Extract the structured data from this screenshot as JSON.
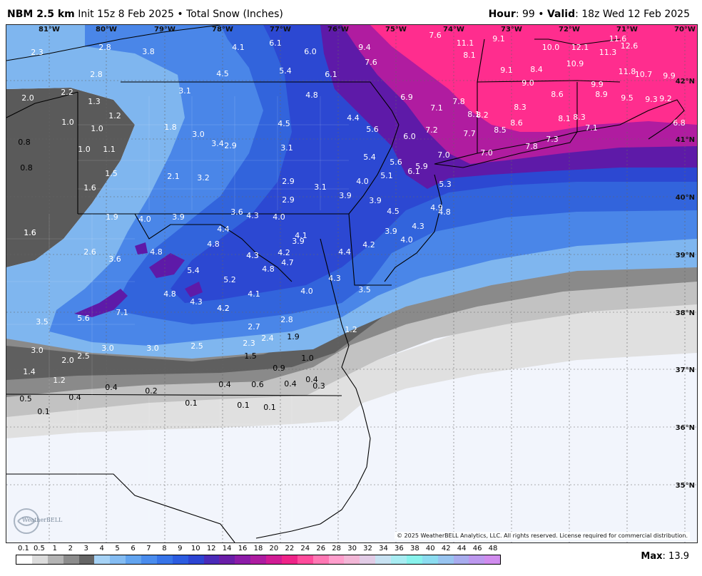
{
  "header": {
    "model": "NBM 2.5 km",
    "init": "Init 15z 8 Feb 2025",
    "bullet": "•",
    "field": "Total Snow (Inches)",
    "hour_label": "Hour",
    "hour_value": ": 99",
    "valid_label": "Valid",
    "valid_value": ": 18z Wed 12 Feb 2025"
  },
  "map": {
    "longitudes": [
      "81°W",
      "80°W",
      "79°W",
      "78°W",
      "77°W",
      "76°W",
      "75°W",
      "74°W",
      "73°W",
      "72°W",
      "71°W",
      "70°W"
    ],
    "latitudes": [
      "42°N",
      "41°N",
      "40°N",
      "39°N",
      "38°N",
      "37°N",
      "36°N",
      "35°N"
    ],
    "snow_values": [
      "2.3",
      "2.8",
      "3.8",
      "4.1",
      "6.1",
      "6.0",
      "9.4",
      "7.6",
      "11.1",
      "9.1",
      "10.0",
      "12.1",
      "11.6",
      "12.6",
      "2.0",
      "2.2",
      "2.8",
      "4.5",
      "5.4",
      "6.1",
      "7.6",
      "8.1",
      "9.1",
      "8.4",
      "10.9",
      "11.3",
      "11.8",
      "10.7",
      "9.9",
      "1.3",
      "1.2",
      "3.1",
      "4.8",
      "6.9",
      "7.1",
      "7.8",
      "8.1",
      "9.0",
      "8.6",
      "9.9",
      "8.9",
      "9.5",
      "9.3",
      "9.2",
      "1.0",
      "1.0",
      "1.8",
      "3.0",
      "4.5",
      "4.4",
      "5.6",
      "8.2",
      "8.3",
      "8.6",
      "8.1",
      "8.3",
      "7.1",
      "6.8",
      "0.8",
      "1.0",
      "1.1",
      "3.4",
      "2.9",
      "3.1",
      "6.0",
      "7.2",
      "7.7",
      "8.5",
      "7.3",
      "7.8",
      "7.0",
      "7.0",
      "0.8",
      "1.6",
      "1.5",
      "2.1",
      "3.2",
      "5.4",
      "5.6",
      "5.9",
      "6.1",
      "5.1",
      "4.0",
      "2.9",
      "3.1",
      "2.9",
      "3.9",
      "5.3",
      "1.6",
      "1.9",
      "4.0",
      "3.9",
      "3.6",
      "4.3",
      "4.0",
      "3.9",
      "4.5",
      "4.9",
      "4.8",
      "4.3",
      "1.6",
      "4.4",
      "4.8",
      "4.3",
      "4.1",
      "3.9",
      "4.4",
      "4.2",
      "3.9",
      "4.0",
      "2.6",
      "3.6",
      "4.8",
      "5.4",
      "4.3",
      "4.2",
      "4.7",
      "4.8",
      "5.2",
      "4.2",
      "4.3",
      "4.1",
      "4.0",
      "3.5",
      "7.1",
      "5.6",
      "4.8",
      "4.3",
      "4.2",
      "2.8",
      "3.5",
      "2.7",
      "2.4",
      "1.9",
      "1.2",
      "3.0",
      "2.5",
      "3.0",
      "3.0",
      "2.5",
      "2.3",
      "1.5",
      "1.0",
      "0.9",
      "1.4",
      "2.0",
      "1.2",
      "0.4",
      "0.2",
      "0.4",
      "0.6",
      "0.4",
      "0.4",
      "0.3",
      "0.5",
      "0.4",
      "0.1",
      "0.1",
      "0.1",
      "0.1"
    ],
    "copyright": "© 2025 WeatherBELL Analytics, LLC. All rights reserved. License required for commercial distribution.",
    "logo_text": "WeatherBELL"
  },
  "legend": {
    "labels": [
      "0.1",
      "0.5",
      "1",
      "2",
      "3",
      "4",
      "5",
      "6",
      "7",
      "8",
      "9",
      "10",
      "12",
      "14",
      "16",
      "18",
      "20",
      "22",
      "24",
      "26",
      "28",
      "30",
      "32",
      "34",
      "36",
      "38",
      "40",
      "42",
      "44",
      "46",
      "48"
    ],
    "colors": [
      "#ffffff",
      "#dcdcdc",
      "#b4b4b4",
      "#8c8c8c",
      "#646464",
      "#a6d2f5",
      "#84bcf2",
      "#62a4ef",
      "#4a8ced",
      "#3774e8",
      "#2c5ce0",
      "#2c44d2",
      "#4a2ab8",
      "#6a1ea8",
      "#8c1ca8",
      "#ad1ca0",
      "#d01c94",
      "#ee2488",
      "#ff4c9c",
      "#ff78b4",
      "#ff9ecc",
      "#f2b6d6",
      "#e2cce6",
      "#c8e2f2",
      "#a8ecf2",
      "#88f2ec",
      "#8cdcf0",
      "#98c4f0",
      "#a8acee",
      "#bc98ee",
      "#d08cee"
    ]
  },
  "max": {
    "label": "Max",
    "value": ": 13.9"
  },
  "colors": {
    "bg_light": "#f2f5fc",
    "low_gray": "#dcdcdc",
    "mid_gray": "#8c8c8c",
    "dark_gray": "#555555",
    "light_blue": "#7fb6ef",
    "blue": "#3f7fe6",
    "deep_blue": "#2f50d8",
    "purple": "#6618a8",
    "magenta": "#b81ca2",
    "pink": "#ff2d8e"
  }
}
